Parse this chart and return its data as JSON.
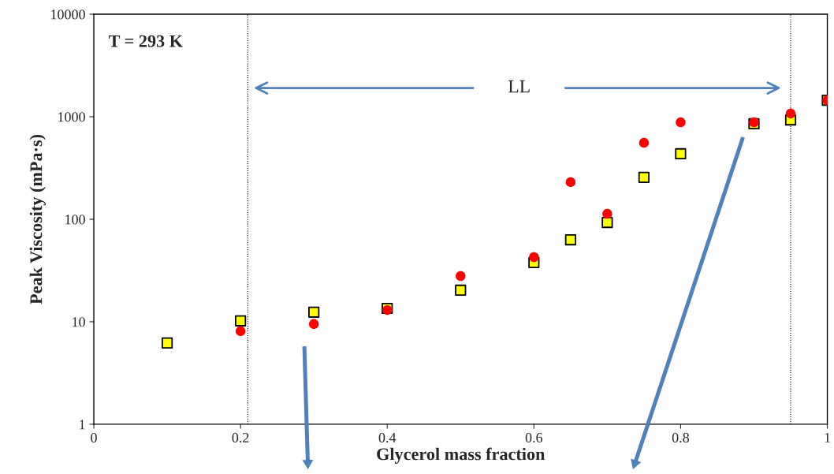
{
  "chart_data": {
    "type": "scatter",
    "xlabel": "Glycerol mass fraction",
    "ylabel": "Peak Viscosity (mPa·s)",
    "log": "y",
    "xlim": [
      0,
      1
    ],
    "xticks": [
      0,
      0.2,
      0.4,
      0.6,
      0.8,
      1
    ],
    "ylim": [
      1,
      10000
    ],
    "yticks": [
      1,
      10,
      100,
      1000,
      10000
    ],
    "grid": false,
    "series": [
      {
        "color": "#ffff00",
        "marker": "square",
        "x": [
          0.1,
          0.2,
          0.3,
          0.4,
          0.5,
          0.6,
          0.65,
          0.7,
          0.75,
          0.8,
          0.9,
          0.95,
          1.0
        ],
        "values": [
          6.2,
          10.2,
          12.4,
          13.5,
          20.3,
          37.8,
          63,
          93,
          256,
          435,
          853,
          931,
          1450
        ]
      },
      {
        "color": "#ff0000",
        "marker": "circle",
        "x": [
          0.2,
          0.3,
          0.4,
          0.5,
          0.6,
          0.65,
          0.7,
          0.75,
          0.8,
          0.9,
          0.95,
          1.0
        ],
        "values": [
          8.1,
          9.5,
          13.0,
          27.9,
          42.7,
          230,
          113,
          557,
          883,
          883,
          1074,
          1450
        ]
      }
    ],
    "ref_lines": [
      {
        "axis": "x",
        "value": 0.21,
        "line_style": "dotted",
        "color": "#000000"
      },
      {
        "axis": "x",
        "value": 0.95,
        "line_style": "dotted",
        "color": "#000000"
      }
    ],
    "annotations": [
      "T = 293 K",
      "LL"
    ]
  }
}
